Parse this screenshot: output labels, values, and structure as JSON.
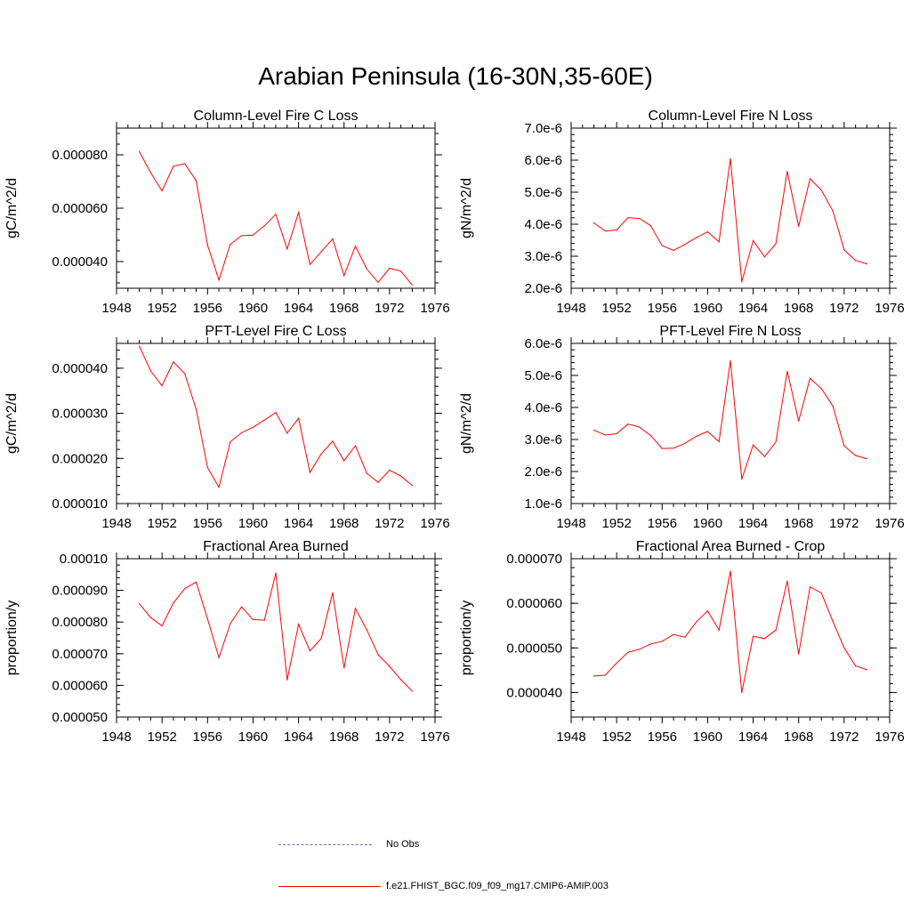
{
  "title": "Arabian Peninsula (16-30N,35-60E)",
  "legend": [
    {
      "label": "No Obs",
      "color": "#6a6acd",
      "style": "dashed"
    },
    {
      "label": "f.e21.FHIST_BGC.f09_f09_mg17.CMIP6-AMIP.003",
      "color": "#ff0000",
      "style": "solid"
    }
  ],
  "chart_data": [
    {
      "type": "line",
      "title": "Column-Level Fire C Loss",
      "ylabel": "gC/m^2/d",
      "xlim": [
        1948,
        1976
      ],
      "ylim": [
        3e-05,
        9e-05
      ],
      "xticks": [
        "1948",
        "1952",
        "1956",
        "1960",
        "1964",
        "1968",
        "1972",
        "1976"
      ],
      "yticks": [
        {
          "value": 4e-05,
          "label": "0.000040"
        },
        {
          "value": 6e-05,
          "label": "0.000060"
        },
        {
          "value": 8e-05,
          "label": "0.000080"
        }
      ],
      "x": [
        1950,
        1951,
        1952,
        1953,
        1954,
        1955,
        1956,
        1957,
        1958,
        1959,
        1960,
        1961,
        1962,
        1963,
        1964,
        1965,
        1966,
        1967,
        1968,
        1969,
        1970,
        1971,
        1972,
        1973,
        1974
      ],
      "series": [
        {
          "color": "#ff0000",
          "values": [
            8.12e-05,
            7.33e-05,
            6.65e-05,
            7.57e-05,
            7.67e-05,
            7.03e-05,
            4.62e-05,
            3.31e-05,
            4.65e-05,
            4.97e-05,
            4.99e-05,
            5.34e-05,
            5.77e-05,
            4.47e-05,
            5.84e-05,
            3.89e-05,
            4.37e-05,
            4.85e-05,
            3.47e-05,
            4.58e-05,
            3.72e-05,
            3.22e-05,
            3.75e-05,
            3.64e-05,
            3.12e-05
          ]
        }
      ]
    },
    {
      "type": "line",
      "title": "Column-Level Fire N Loss",
      "ylabel": "gN/m^2/d",
      "xlim": [
        1948,
        1976
      ],
      "ylim": [
        2e-06,
        7e-06
      ],
      "xticks": [
        "1948",
        "1952",
        "1956",
        "1960",
        "1964",
        "1968",
        "1972",
        "1976"
      ],
      "yticks": [
        {
          "value": 2e-06,
          "label": "2.0e-6"
        },
        {
          "value": 3e-06,
          "label": "3.0e-6"
        },
        {
          "value": 4e-06,
          "label": "4.0e-6"
        },
        {
          "value": 5e-06,
          "label": "5.0e-6"
        },
        {
          "value": 6e-06,
          "label": "6.0e-6"
        },
        {
          "value": 7e-06,
          "label": "7.0e-6"
        }
      ],
      "x": [
        1950,
        1951,
        1952,
        1953,
        1954,
        1955,
        1956,
        1957,
        1958,
        1959,
        1960,
        1961,
        1962,
        1963,
        1964,
        1965,
        1966,
        1967,
        1968,
        1969,
        1970,
        1971,
        1972,
        1973,
        1974
      ],
      "series": [
        {
          "color": "#ff0000",
          "values": [
            4.04e-06,
            3.79e-06,
            3.82e-06,
            4.2e-06,
            4.18e-06,
            3.95e-06,
            3.33e-06,
            3.18e-06,
            3.37e-06,
            3.58e-06,
            3.76e-06,
            3.45e-06,
            6.05e-06,
            2.2e-06,
            3.49e-06,
            2.98e-06,
            3.39e-06,
            5.65e-06,
            3.93e-06,
            5.42e-06,
            5.06e-06,
            4.42e-06,
            3.2e-06,
            2.87e-06,
            2.76e-06
          ]
        }
      ]
    },
    {
      "type": "line",
      "title": "PFT-Level Fire C Loss",
      "ylabel": "gC/m^2/d",
      "xlim": [
        1948,
        1976
      ],
      "ylim": [
        1e-05,
        4.55e-05
      ],
      "xticks": [
        "1948",
        "1952",
        "1956",
        "1960",
        "1964",
        "1968",
        "1972",
        "1976"
      ],
      "yticks": [
        {
          "value": 1e-05,
          "label": "0.000010"
        },
        {
          "value": 2e-05,
          "label": "0.000020"
        },
        {
          "value": 3e-05,
          "label": "0.000030"
        },
        {
          "value": 4e-05,
          "label": "0.000040"
        }
      ],
      "x": [
        1950,
        1951,
        1952,
        1953,
        1954,
        1955,
        1956,
        1957,
        1958,
        1959,
        1960,
        1961,
        1962,
        1963,
        1964,
        1965,
        1966,
        1967,
        1968,
        1969,
        1970,
        1971,
        1972,
        1973,
        1974
      ],
      "series": [
        {
          "color": "#ff0000",
          "values": [
            4.49e-05,
            3.94e-05,
            3.61e-05,
            4.14e-05,
            3.88e-05,
            3.09e-05,
            1.8e-05,
            1.36e-05,
            2.37e-05,
            2.57e-05,
            2.69e-05,
            2.85e-05,
            3.02e-05,
            2.56e-05,
            2.89e-05,
            1.69e-05,
            2.1e-05,
            2.38e-05,
            1.95e-05,
            2.28e-05,
            1.67e-05,
            1.47e-05,
            1.74e-05,
            1.61e-05,
            1.4e-05
          ]
        }
      ]
    },
    {
      "type": "line",
      "title": "PFT-Level Fire N Loss",
      "ylabel": "gN/m^2/d",
      "xlim": [
        1948,
        1976
      ],
      "ylim": [
        1e-06,
        6e-06
      ],
      "xticks": [
        "1948",
        "1952",
        "1956",
        "1960",
        "1964",
        "1968",
        "1972",
        "1976"
      ],
      "yticks": [
        {
          "value": 1e-06,
          "label": "1.0e-6"
        },
        {
          "value": 2e-06,
          "label": "2.0e-6"
        },
        {
          "value": 3e-06,
          "label": "3.0e-6"
        },
        {
          "value": 4e-06,
          "label": "4.0e-6"
        },
        {
          "value": 5e-06,
          "label": "5.0e-6"
        },
        {
          "value": 6e-06,
          "label": "6.0e-6"
        }
      ],
      "x": [
        1950,
        1951,
        1952,
        1953,
        1954,
        1955,
        1956,
        1957,
        1958,
        1959,
        1960,
        1961,
        1962,
        1963,
        1964,
        1965,
        1966,
        1967,
        1968,
        1969,
        1970,
        1971,
        1972,
        1973,
        1974
      ],
      "series": [
        {
          "color": "#ff0000",
          "values": [
            3.29e-06,
            3.14e-06,
            3.18e-06,
            3.48e-06,
            3.39e-06,
            3.12e-06,
            2.72e-06,
            2.73e-06,
            2.88e-06,
            3.1e-06,
            3.25e-06,
            2.93e-06,
            5.46e-06,
            1.76e-06,
            2.83e-06,
            2.47e-06,
            2.92e-06,
            5.13e-06,
            3.58e-06,
            4.91e-06,
            4.59e-06,
            4.05e-06,
            2.8e-06,
            2.5e-06,
            2.4e-06
          ]
        }
      ]
    },
    {
      "type": "line",
      "title": "Fractional Area Burned",
      "ylabel": "proportion/y",
      "xlim": [
        1948,
        1976
      ],
      "ylim": [
        5e-05,
        0.0001
      ],
      "xticks": [
        "1948",
        "1952",
        "1956",
        "1960",
        "1964",
        "1968",
        "1972",
        "1976"
      ],
      "yticks": [
        {
          "value": 5e-05,
          "label": "0.000050"
        },
        {
          "value": 6e-05,
          "label": "0.000060"
        },
        {
          "value": 7e-05,
          "label": "0.000070"
        },
        {
          "value": 8e-05,
          "label": "0.000080"
        },
        {
          "value": 9e-05,
          "label": "0.000090"
        },
        {
          "value": 0.0001,
          "label": "0.00010"
        }
      ],
      "x": [
        1950,
        1951,
        1952,
        1953,
        1954,
        1955,
        1956,
        1957,
        1958,
        1959,
        1960,
        1961,
        1962,
        1963,
        1964,
        1965,
        1966,
        1967,
        1968,
        1969,
        1970,
        1971,
        1972,
        1973,
        1974
      ],
      "series": [
        {
          "color": "#ff0000",
          "values": [
            8.58e-05,
            8.14e-05,
            7.88e-05,
            8.6e-05,
            9.06e-05,
            9.26e-05,
            8.1e-05,
            6.88e-05,
            7.95e-05,
            8.48e-05,
            8.08e-05,
            8.06e-05,
            9.55e-05,
            6.17e-05,
            7.93e-05,
            7.09e-05,
            7.48e-05,
            8.92e-05,
            6.55e-05,
            8.43e-05,
            7.75e-05,
            6.97e-05,
            6.6e-05,
            6.18e-05,
            5.82e-05
          ]
        }
      ]
    },
    {
      "type": "line",
      "title": "Fractional Area Burned - Crop",
      "ylabel": "proportion/y",
      "xlim": [
        1948,
        1976
      ],
      "ylim": [
        3.45e-05,
        7e-05
      ],
      "xticks": [
        "1948",
        "1952",
        "1956",
        "1960",
        "1964",
        "1968",
        "1972",
        "1976"
      ],
      "yticks": [
        {
          "value": 4e-05,
          "label": "0.000040"
        },
        {
          "value": 5e-05,
          "label": "0.000050"
        },
        {
          "value": 6e-05,
          "label": "0.000060"
        },
        {
          "value": 7e-05,
          "label": "0.000070"
        }
      ],
      "x": [
        1950,
        1951,
        1952,
        1953,
        1954,
        1955,
        1956,
        1957,
        1958,
        1959,
        1960,
        1961,
        1962,
        1963,
        1964,
        1965,
        1966,
        1967,
        1968,
        1969,
        1970,
        1971,
        1972,
        1973,
        1974
      ],
      "series": [
        {
          "color": "#ff0000",
          "values": [
            4.37e-05,
            4.39e-05,
            4.66e-05,
            4.9e-05,
            4.97e-05,
            5.09e-05,
            5.15e-05,
            5.3e-05,
            5.24e-05,
            5.58e-05,
            5.83e-05,
            5.4e-05,
            6.72e-05,
            4e-05,
            5.26e-05,
            5.21e-05,
            5.4e-05,
            6.5e-05,
            4.86e-05,
            6.37e-05,
            6.23e-05,
            5.6e-05,
            5e-05,
            4.6e-05,
            4.51e-05
          ]
        }
      ]
    }
  ]
}
